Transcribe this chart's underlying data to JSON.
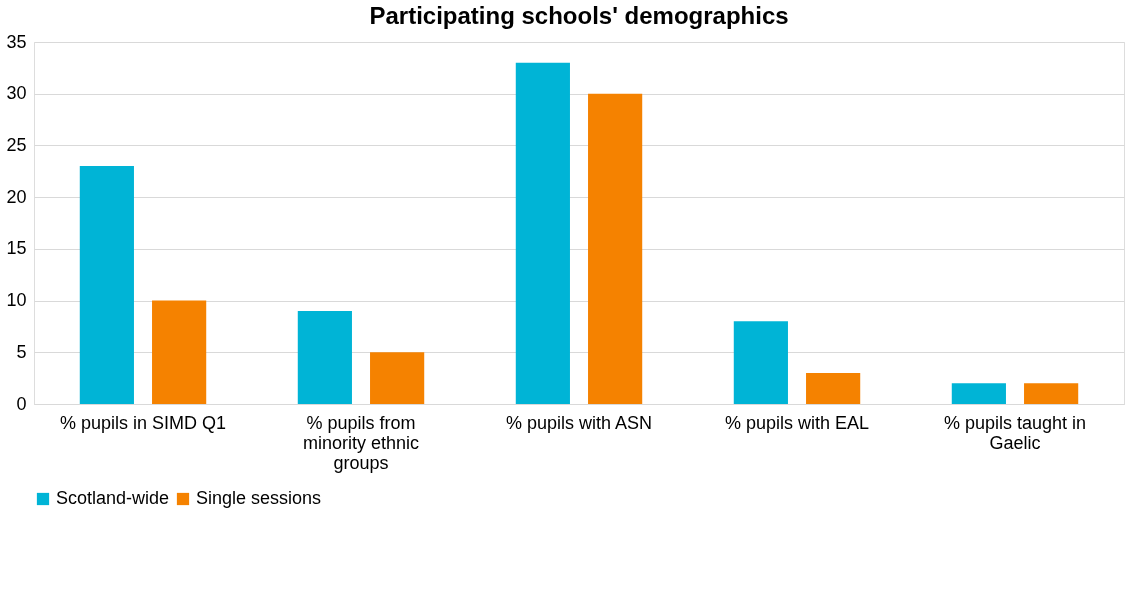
{
  "chart_data": {
    "type": "bar",
    "title": "Participating schools' demographics",
    "categories": [
      "% pupils in SIMD Q1",
      "% pupils from minority ethnic groups",
      "% pupils with ASN",
      "% pupils with EAL",
      "% pupils taught in Gaelic"
    ],
    "series": [
      {
        "name": "Scotland-wide",
        "color": "#00b4d6",
        "values": [
          23,
          9,
          33,
          8,
          2
        ]
      },
      {
        "name": "Single sessions",
        "color": "#f58200",
        "values": [
          10,
          5,
          30,
          3,
          2
        ]
      }
    ],
    "ylim": [
      0,
      35
    ],
    "yticks": [
      0,
      5,
      10,
      15,
      20,
      25,
      30,
      35
    ],
    "grid": "y",
    "legend": "bottom"
  }
}
